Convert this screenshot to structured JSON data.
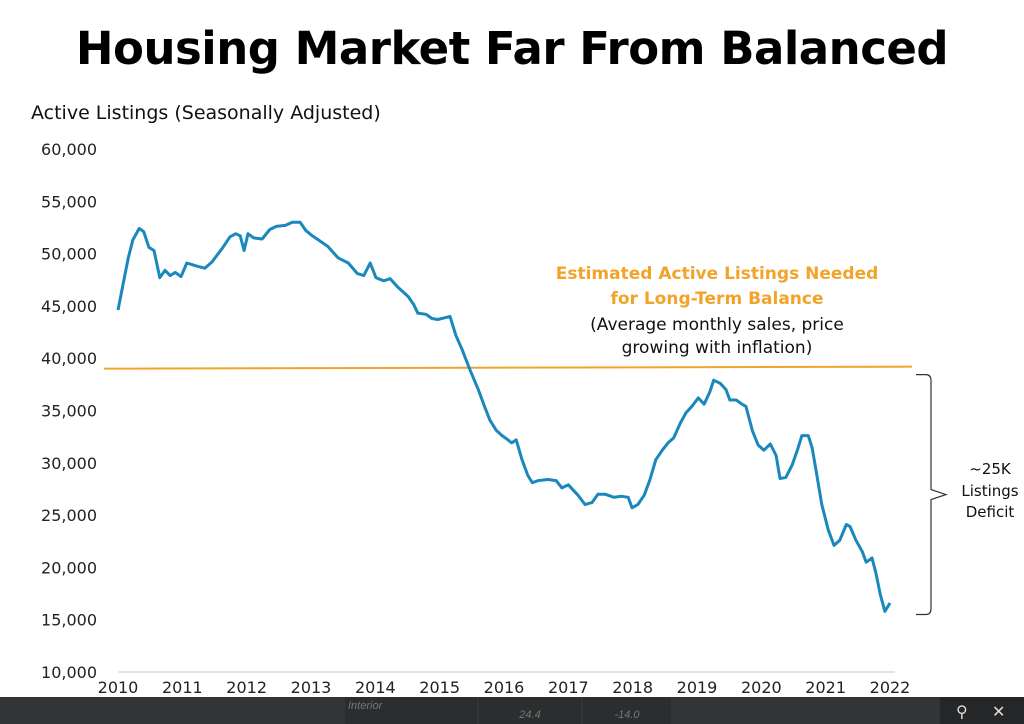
{
  "chart_data": {
    "type": "line",
    "title": "Housing Market Far From Balanced",
    "ylabel": "Active Listings (Seasonally Adjusted)",
    "xlabel": "",
    "ylim": [
      10000,
      60000
    ],
    "xlim": [
      2010,
      2022
    ],
    "yticks": [
      "60,000",
      "55,000",
      "50,000",
      "45,000",
      "40,000",
      "35,000",
      "30,000",
      "25,000",
      "20,000",
      "15,000",
      "10,000"
    ],
    "ytick_values": [
      60000,
      55000,
      50000,
      45000,
      40000,
      35000,
      30000,
      25000,
      20000,
      15000,
      10000
    ],
    "xticks": [
      "2010",
      "2011",
      "2012",
      "2013",
      "2014",
      "2015",
      "2016",
      "2017",
      "2018",
      "2019",
      "2020",
      "2021",
      "2022"
    ],
    "grid": false,
    "line_color": "#1a87bd",
    "reference_line": {
      "value": 39000,
      "color": "#f2a42a",
      "label_lines": [
        "Estimated Active Listings Needed",
        "for Long-Term Balance"
      ],
      "note_lines": [
        "(Average monthly sales, price",
        "growing with inflation)"
      ]
    },
    "deficit_annotation": {
      "lines": [
        "~25K",
        "Listings",
        "Deficit"
      ],
      "from": 39000,
      "to": 15500
    },
    "series": [
      {
        "x": [
          2010.0,
          2010.06,
          2010.16,
          2010.23,
          2010.33,
          2010.4,
          2010.48,
          2010.56,
          2010.65,
          2010.73,
          2010.81,
          2010.89,
          2010.98,
          2011.07,
          2011.23,
          2011.35,
          2011.46,
          2011.62,
          2011.74,
          2011.83,
          2011.9,
          2011.96,
          2012.02,
          2012.11,
          2012.24,
          2012.36,
          2012.46,
          2012.6,
          2012.71,
          2012.83,
          2012.92,
          2013.02,
          2013.14,
          2013.26,
          2013.42,
          2013.58,
          2013.72,
          2013.82,
          2013.92,
          2014.01,
          2014.13,
          2014.23,
          2014.35,
          2014.51,
          2014.6,
          2014.66,
          2014.79,
          2014.88,
          2014.97,
          2015.1,
          2015.16,
          2015.25,
          2015.35,
          2015.47,
          2015.6,
          2015.69,
          2015.78,
          2015.88,
          2015.97,
          2016.06,
          2016.12,
          2016.19,
          2016.28,
          2016.37,
          2016.44,
          2016.53,
          2016.68,
          2016.81,
          2016.9,
          2017.0,
          2017.15,
          2017.26,
          2017.37,
          2017.46,
          2017.57,
          2017.71,
          2017.83,
          2017.93,
          2017.99,
          2018.08,
          2018.18,
          2018.27,
          2018.36,
          2018.46,
          2018.55,
          2018.64,
          2018.74,
          2018.83,
          2018.92,
          2019.02,
          2019.11,
          2019.2,
          2019.26,
          2019.36,
          2019.45,
          2019.51,
          2019.61,
          2019.7,
          2019.76,
          2019.86,
          2019.95,
          2020.04,
          2020.14,
          2020.23,
          2020.29,
          2020.38,
          2020.48,
          2020.57,
          2020.63,
          2020.73,
          2020.79,
          2020.85,
          2020.94,
          2021.04,
          2021.13,
          2021.22,
          2021.32,
          2021.38,
          2021.47,
          2021.57,
          2021.63,
          2021.72,
          2021.78,
          2021.85,
          2021.92,
          2022.0
        ],
        "values": [
          44600,
          46500,
          49600,
          51300,
          52400,
          52100,
          50600,
          50300,
          47700,
          48400,
          47900,
          48200,
          47800,
          49100,
          48800,
          48600,
          49200,
          50500,
          51600,
          51900,
          51700,
          50300,
          51900,
          51500,
          51400,
          52300,
          52600,
          52700,
          53000,
          53000,
          52200,
          51700,
          51200,
          50700,
          49600,
          49100,
          48100,
          47900,
          49100,
          47700,
          47400,
          47600,
          46800,
          45900,
          45100,
          44300,
          44200,
          43800,
          43700,
          43900,
          44000,
          42200,
          40800,
          38900,
          37000,
          35500,
          34100,
          33100,
          32600,
          32200,
          31900,
          32200,
          30300,
          28800,
          28100,
          28300,
          28400,
          28300,
          27600,
          27900,
          26900,
          26000,
          26200,
          27000,
          27000,
          26700,
          26800,
          26700,
          25700,
          26000,
          26900,
          28400,
          30300,
          31200,
          31900,
          32400,
          33800,
          34800,
          35400,
          36200,
          35600,
          36800,
          37900,
          37600,
          37000,
          36000,
          36000,
          35600,
          35400,
          33100,
          31700,
          31200,
          31800,
          30700,
          28500,
          28600,
          29800,
          31400,
          32600,
          32600,
          31400,
          29300,
          26000,
          23600,
          22100,
          22600,
          24100,
          23900,
          22600,
          21500,
          20500,
          20900,
          19500,
          17400,
          15800,
          16600
        ]
      }
    ]
  },
  "overlay_bar": {
    "cells": [
      "Interior",
      "24.4",
      "-14.0"
    ],
    "search_icon": "magnifier",
    "close_icon": "x"
  }
}
